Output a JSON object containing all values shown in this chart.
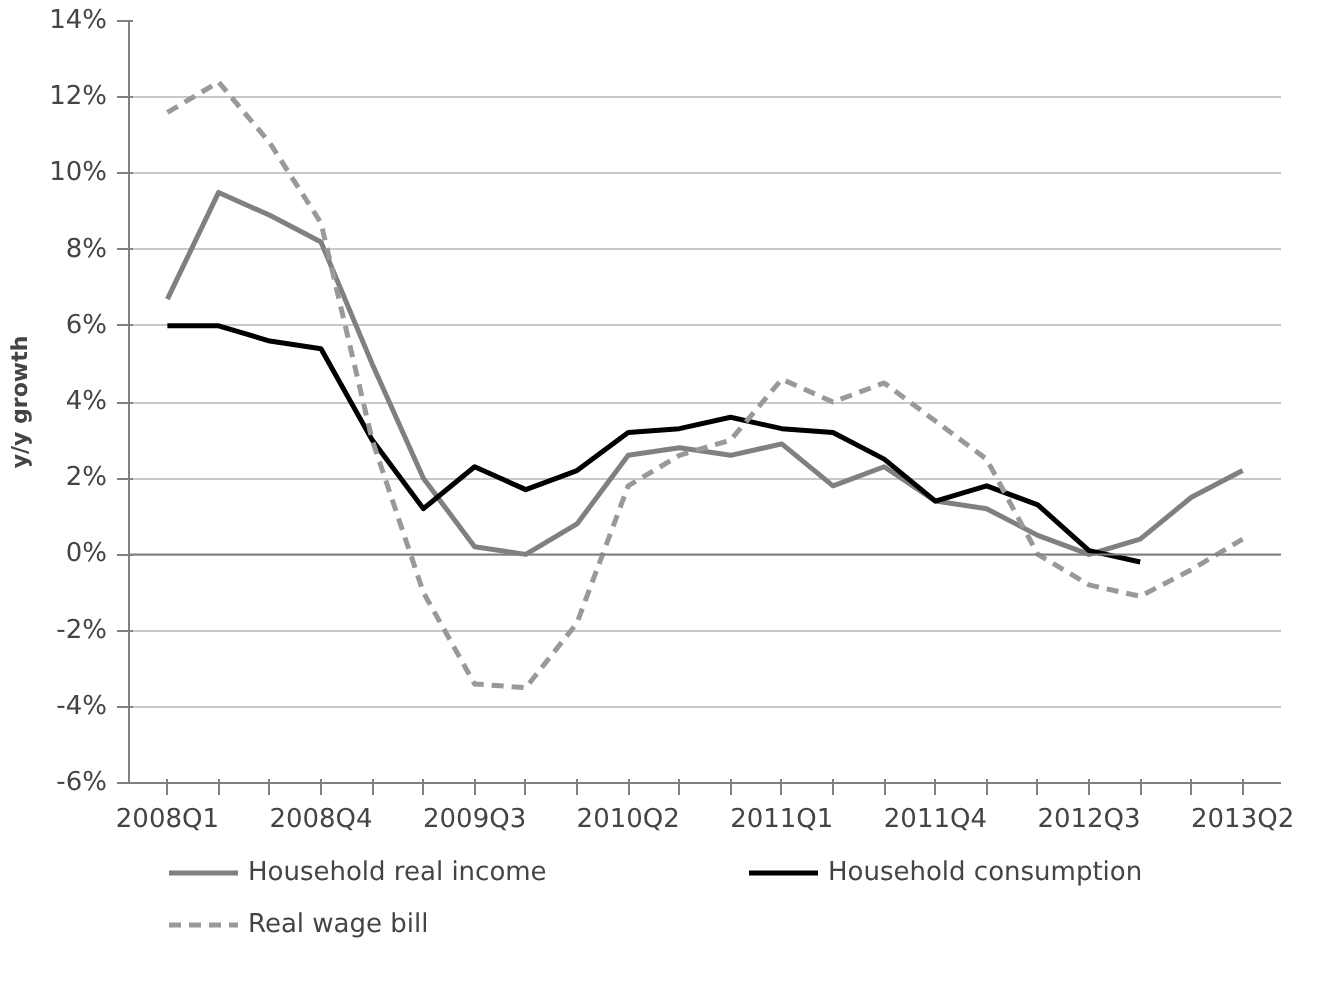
{
  "chart_data": {
    "type": "line",
    "ylabel": "y/y growth",
    "categories": [
      "2008Q1",
      null,
      null,
      "2008Q4",
      null,
      null,
      "2009Q3",
      null,
      null,
      "2010Q2",
      null,
      null,
      "2011Q1",
      null,
      null,
      "2011Q4",
      null,
      null,
      "2012Q3",
      null,
      null,
      "2013Q2"
    ],
    "series": [
      {
        "name": "Household real income",
        "color": "#808080",
        "line_style": "solid",
        "values": [
          6.7,
          9.5,
          8.9,
          8.2,
          5.0,
          2.0,
          0.2,
          0.0,
          0.8,
          2.6,
          2.8,
          2.6,
          2.9,
          1.8,
          2.3,
          1.4,
          1.2,
          0.5,
          0.0,
          0.4,
          1.5,
          2.2
        ]
      },
      {
        "name": "Household consumption",
        "color": "#000000",
        "line_style": "solid",
        "values": [
          6.0,
          6.0,
          5.6,
          5.4,
          3.0,
          1.2,
          2.3,
          1.7,
          2.2,
          3.2,
          3.3,
          3.6,
          3.3,
          3.2,
          2.5,
          1.4,
          1.8,
          1.3,
          0.1,
          -0.2,
          null,
          null
        ]
      },
      {
        "name": "Real wage bill",
        "color": "#999999",
        "line_style": "dashed",
        "values": [
          11.6,
          12.4,
          10.8,
          8.7,
          3.0,
          -1.0,
          -3.4,
          -3.5,
          -1.8,
          1.8,
          2.6,
          3.0,
          4.6,
          4.0,
          4.5,
          3.5,
          2.5,
          0.0,
          -0.8,
          -1.1,
          -0.4,
          0.4
        ]
      }
    ],
    "ylim": [
      -6,
      14
    ],
    "yticks": [
      {
        "value": -6,
        "label": "-6%"
      },
      {
        "value": -4,
        "label": "-4%"
      },
      {
        "value": -2,
        "label": "-2%"
      },
      {
        "value": 0,
        "label": "0%"
      },
      {
        "value": 2,
        "label": "2%"
      },
      {
        "value": 4,
        "label": "4%"
      },
      {
        "value": 6,
        "label": "6%"
      },
      {
        "value": 8,
        "label": "8%"
      },
      {
        "value": 10,
        "label": "10%"
      },
      {
        "value": 12,
        "label": "12%"
      },
      {
        "value": 14,
        "label": "14%"
      }
    ],
    "grid": "y",
    "legend": "bottom"
  }
}
